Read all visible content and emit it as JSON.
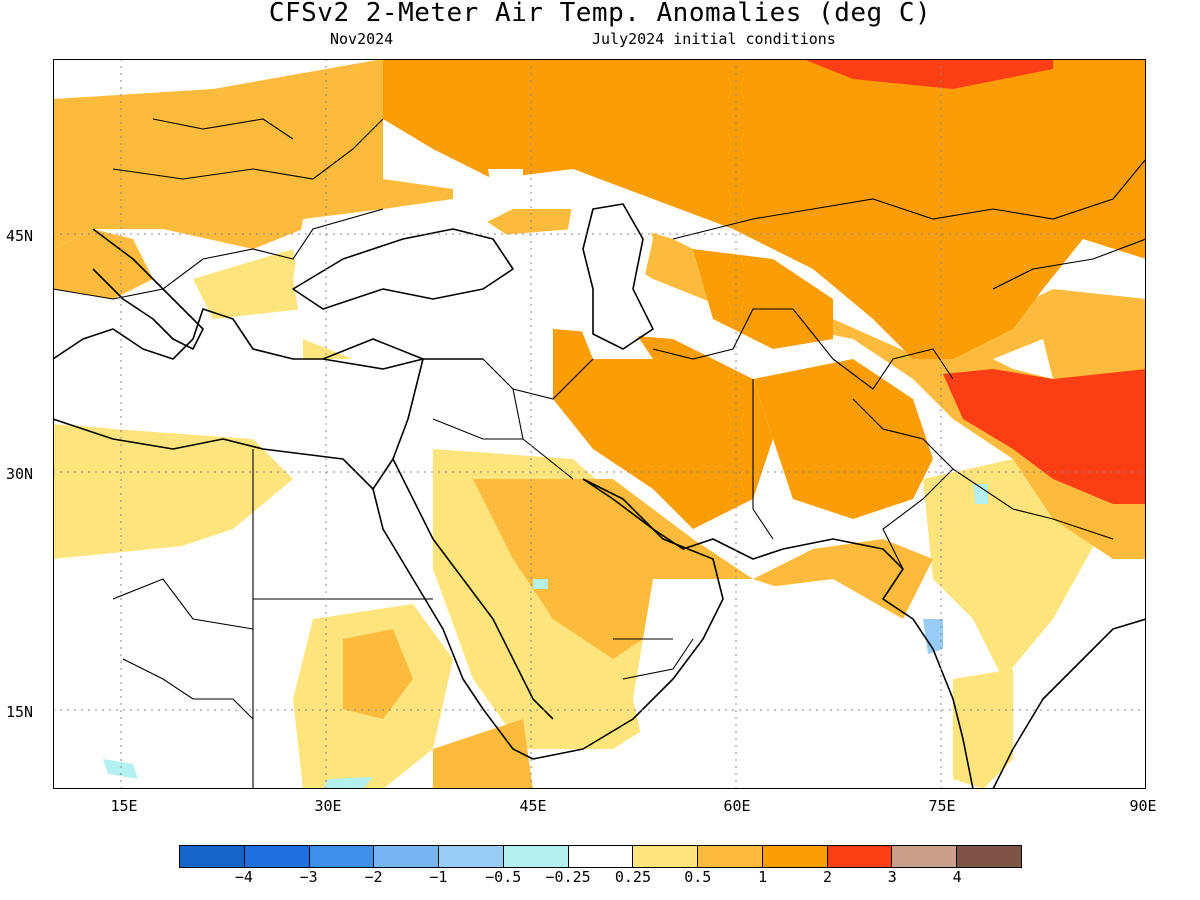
{
  "title": "CFSv2 2-Meter Air Temp. Anomalies (deg C)",
  "subtitle_left": "Nov2024",
  "subtitle_right": "July2024 initial conditions",
  "x_ticks": [
    "15E",
    "30E",
    "45E",
    "60E",
    "75E",
    "90E"
  ],
  "y_ticks": [
    "45N",
    "30N",
    "15N"
  ],
  "colorbar": {
    "colors": [
      "#1565c8",
      "#1e6fe0",
      "#3d8fe8",
      "#78b4f0",
      "#98ccf5",
      "#b4f0f0",
      "#ffffff",
      "#fee47d",
      "#fdbb3d",
      "#fb9d07",
      "#fb3e14",
      "#c8a08c",
      "#7d5446"
    ],
    "labels": [
      "−4",
      "−3",
      "−2",
      "−1",
      "−0.5",
      "−0.25",
      "0.25",
      "0.5",
      "1",
      "2",
      "3",
      "4"
    ]
  },
  "map": {
    "lon_range": [
      10,
      90
    ],
    "lat_range": [
      10,
      56
    ],
    "grid": "dotted at 15° intervals"
  }
}
